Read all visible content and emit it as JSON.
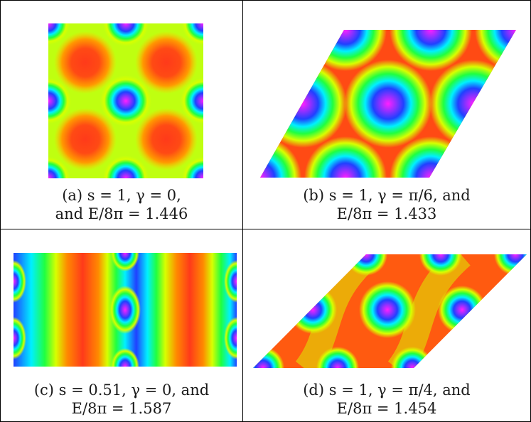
{
  "panels": [
    {
      "id": "a",
      "caption_line1": "(a)  s = 1,  γ = 0,",
      "caption_line2": "and  E/8π = 1.446",
      "params": {
        "s": "1",
        "gamma": "0",
        "energy": "1.446"
      }
    },
    {
      "id": "b",
      "caption_line1": "(b)  s = 1,  γ = π/6,  and",
      "caption_line2": "E/8π = 1.433",
      "params": {
        "s": "1",
        "gamma": "π/6",
        "energy": "1.433"
      }
    },
    {
      "id": "c",
      "caption_line1": "(c)  s = 0.51,  γ = 0,  and",
      "caption_line2": "E/8π = 1.587",
      "params": {
        "s": "0.51",
        "gamma": "0",
        "energy": "1.587"
      }
    },
    {
      "id": "d",
      "caption_line1": "(d)  s = 1,  γ = π/4,  and",
      "caption_line2": "E/8π = 1.454",
      "params": {
        "s": "1",
        "gamma": "π/4",
        "energy": "1.454"
      }
    }
  ],
  "colors": {
    "red": "#ff3a1a",
    "orange": "#ff8a00",
    "yellow": "#d8ff00",
    "green": "#20ff40",
    "cyan": "#00f0ff",
    "blue": "#2040ff",
    "magenta": "#ff20ff"
  }
}
